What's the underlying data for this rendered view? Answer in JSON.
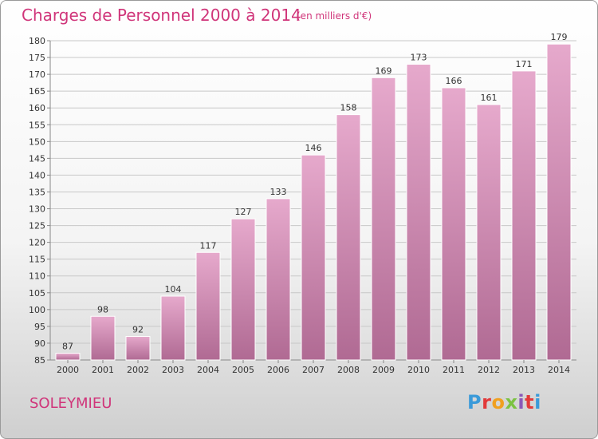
{
  "header": {
    "title": "Charges de Personnel 2000 à 2014",
    "unit": "(en milliers d'€)"
  },
  "footer": {
    "location": "SOLEYMIEU",
    "logo": "Proxiti",
    "logo_colors": [
      "#3a9ad9",
      "#e23a3a",
      "#f0a020",
      "#7cc242",
      "#8a58b8",
      "#e23a3a",
      "#3a9ad9"
    ]
  },
  "colors": {
    "bar_top": "#e6a9cc",
    "bar_bottom": "#b06a93",
    "grid": "#c8c8c8",
    "axis_text": "#333333",
    "accent": "#d0357a"
  },
  "chart_data": {
    "type": "bar",
    "title": "Charges de Personnel 2000 à 2014",
    "unit": "(en milliers d'€)",
    "categories": [
      "2000",
      "2001",
      "2002",
      "2003",
      "2004",
      "2005",
      "2006",
      "2007",
      "2008",
      "2009",
      "2010",
      "2011",
      "2012",
      "2013",
      "2014"
    ],
    "values": [
      87,
      98,
      92,
      104,
      117,
      127,
      133,
      146,
      158,
      169,
      173,
      166,
      161,
      171,
      179
    ],
    "ylim": [
      85,
      180
    ],
    "yticks": [
      85,
      90,
      95,
      100,
      105,
      110,
      115,
      120,
      125,
      130,
      135,
      140,
      145,
      150,
      155,
      160,
      165,
      170,
      175,
      180
    ],
    "grid": true,
    "legend": "none"
  }
}
